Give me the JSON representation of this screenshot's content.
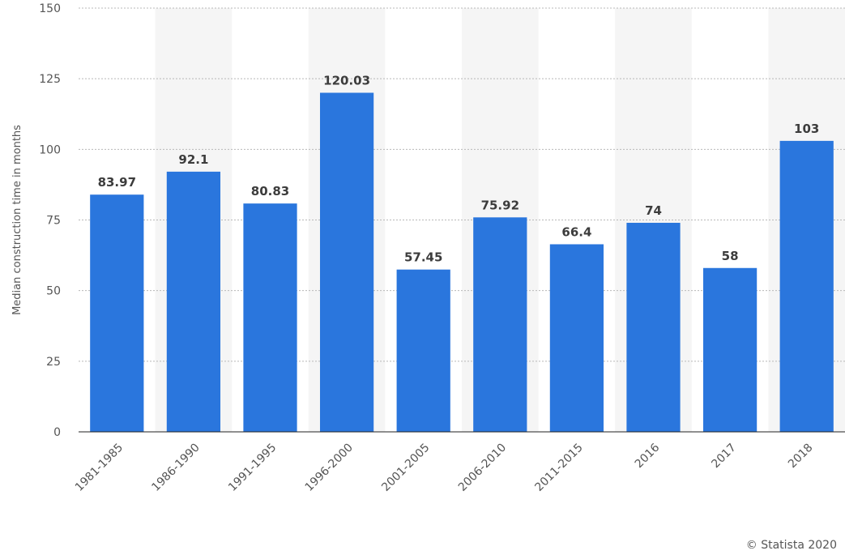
{
  "chart_data": {
    "type": "bar",
    "categories": [
      "1981-1985",
      "1986-1990",
      "1991-1995",
      "1996-2000",
      "2001-2005",
      "2006-2010",
      "2011-2015",
      "2016",
      "2017",
      "2018"
    ],
    "values": [
      83.97,
      92.1,
      80.83,
      120.03,
      57.45,
      75.92,
      66.4,
      74,
      58,
      103
    ],
    "value_labels": [
      "83.97",
      "92.1",
      "80.83",
      "120.03",
      "57.45",
      "75.92",
      "66.4",
      "74",
      "58",
      "103"
    ],
    "ylabel": "Median construction time in months",
    "ylim": [
      0,
      150
    ],
    "yticks": [
      0,
      25,
      50,
      75,
      100,
      125,
      150
    ],
    "grid": true,
    "bar_color": "#2a76dd",
    "band_color": "#f5f5f5"
  },
  "credit": "© Statista 2020"
}
